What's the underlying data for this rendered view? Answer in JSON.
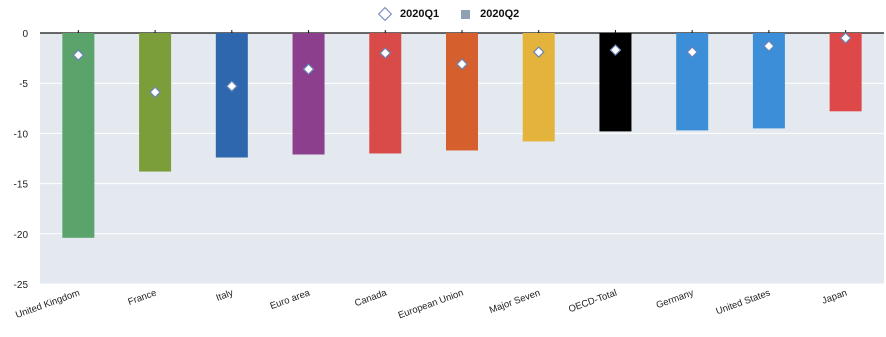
{
  "chart_data": {
    "type": "bar",
    "categories": [
      "United Kingdom",
      "France",
      "Italy",
      "Euro area",
      "Canada",
      "European Union",
      "Major Seven",
      "OECD-Total",
      "Germany",
      "United States",
      "Japan"
    ],
    "series": [
      {
        "name": "2020Q2",
        "marker": "bar",
        "values": [
          -20.4,
          -13.8,
          -12.4,
          -12.1,
          -12.0,
          -11.7,
          -10.8,
          -9.8,
          -9.7,
          -9.5,
          -7.8
        ]
      },
      {
        "name": "2020Q1",
        "marker": "diamond",
        "values": [
          -2.2,
          -5.9,
          -5.3,
          -3.6,
          -2.0,
          -3.1,
          -1.9,
          -1.7,
          -1.9,
          -1.3,
          -0.5
        ]
      }
    ],
    "colors": [
      "#5aa36b",
      "#7c9e3a",
      "#2e67ad",
      "#8b3f8c",
      "#d94b48",
      "#d65f2e",
      "#e3b33c",
      "#000000",
      "#3c8ed8",
      "#3c8ed8",
      "#df4848"
    ],
    "yticks": [
      0,
      -5,
      -10,
      -15,
      -20,
      -25
    ],
    "ylim": [
      -25,
      0
    ],
    "grid": true,
    "legend_position": "top-center"
  }
}
